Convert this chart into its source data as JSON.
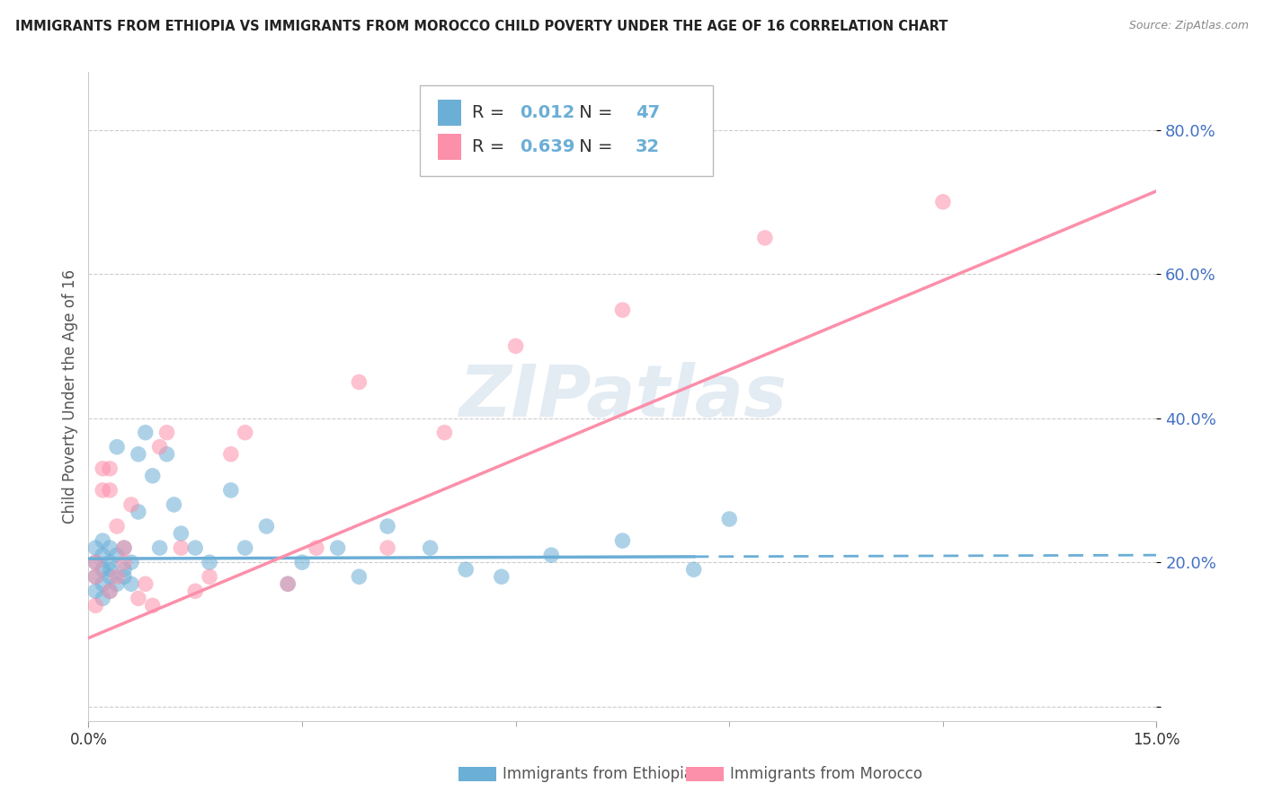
{
  "title": "IMMIGRANTS FROM ETHIOPIA VS IMMIGRANTS FROM MOROCCO CHILD POVERTY UNDER THE AGE OF 16 CORRELATION CHART",
  "source": "Source: ZipAtlas.com",
  "ylabel": "Child Poverty Under the Age of 16",
  "xlim": [
    0.0,
    0.15
  ],
  "ylim": [
    -0.02,
    0.88
  ],
  "yticks": [
    0.0,
    0.2,
    0.4,
    0.6,
    0.8
  ],
  "ytick_labels": [
    "",
    "20.0%",
    "40.0%",
    "60.0%",
    "80.0%"
  ],
  "xticks": [
    0.0,
    0.15
  ],
  "xtick_labels": [
    "0.0%",
    "15.0%"
  ],
  "ethiopia_color": "#6baed6",
  "morocco_color": "#fc8faa",
  "ethiopia_R": 0.012,
  "ethiopia_N": 47,
  "morocco_R": 0.639,
  "morocco_N": 32,
  "legend_label_ethiopia": "Immigrants from Ethiopia",
  "legend_label_morocco": "Immigrants from Morocco",
  "watermark": "ZIPatlas",
  "ethiopia_trend_solid_end": 0.085,
  "ethiopia_trend_y_at_0": 0.205,
  "ethiopia_trend_y_at_15": 0.21,
  "morocco_trend_y_at_0": 0.095,
  "morocco_trend_y_at_15": 0.715,
  "ethiopia_x": [
    0.001,
    0.001,
    0.001,
    0.001,
    0.002,
    0.002,
    0.002,
    0.002,
    0.002,
    0.003,
    0.003,
    0.003,
    0.003,
    0.003,
    0.004,
    0.004,
    0.004,
    0.005,
    0.005,
    0.005,
    0.006,
    0.006,
    0.007,
    0.007,
    0.008,
    0.009,
    0.01,
    0.011,
    0.012,
    0.013,
    0.015,
    0.017,
    0.02,
    0.022,
    0.025,
    0.028,
    0.03,
    0.035,
    0.038,
    0.042,
    0.048,
    0.053,
    0.058,
    0.065,
    0.075,
    0.085,
    0.09
  ],
  "ethiopia_y": [
    0.2,
    0.18,
    0.16,
    0.22,
    0.19,
    0.21,
    0.17,
    0.15,
    0.23,
    0.2,
    0.18,
    0.22,
    0.16,
    0.19,
    0.21,
    0.17,
    0.36,
    0.19,
    0.22,
    0.18,
    0.2,
    0.17,
    0.27,
    0.35,
    0.38,
    0.32,
    0.22,
    0.35,
    0.28,
    0.24,
    0.22,
    0.2,
    0.3,
    0.22,
    0.25,
    0.17,
    0.2,
    0.22,
    0.18,
    0.25,
    0.22,
    0.19,
    0.18,
    0.21,
    0.23,
    0.19,
    0.26
  ],
  "morocco_x": [
    0.001,
    0.001,
    0.001,
    0.002,
    0.002,
    0.003,
    0.003,
    0.003,
    0.004,
    0.004,
    0.005,
    0.005,
    0.006,
    0.007,
    0.008,
    0.009,
    0.01,
    0.011,
    0.013,
    0.015,
    0.017,
    0.02,
    0.022,
    0.028,
    0.032,
    0.038,
    0.042,
    0.05,
    0.06,
    0.075,
    0.095,
    0.12
  ],
  "morocco_y": [
    0.18,
    0.14,
    0.2,
    0.33,
    0.3,
    0.3,
    0.33,
    0.16,
    0.18,
    0.25,
    0.22,
    0.2,
    0.28,
    0.15,
    0.17,
    0.14,
    0.36,
    0.38,
    0.22,
    0.16,
    0.18,
    0.35,
    0.38,
    0.17,
    0.22,
    0.45,
    0.22,
    0.38,
    0.5,
    0.55,
    0.65,
    0.7
  ]
}
